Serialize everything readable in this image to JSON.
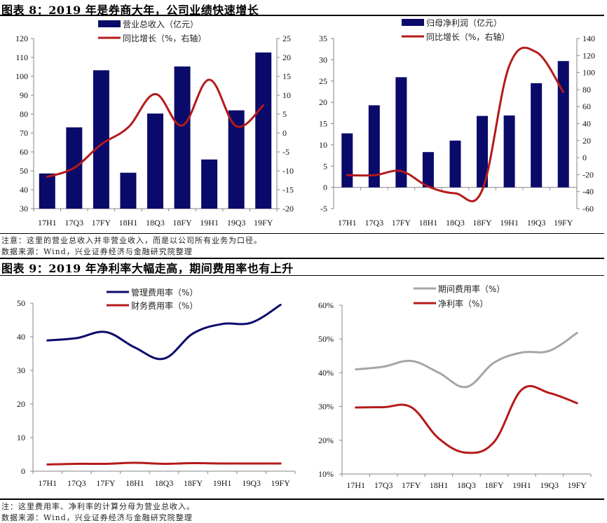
{
  "figure8": {
    "title": "图表 8：2019 年是券商大年，公司业绩快速增长",
    "note": "注意：这里的营业总收入并非营业收入，而是以公司所有业务为口径。",
    "source": "数据来源：Wind，兴业证券经济与金融研究院整理"
  },
  "figure9": {
    "title": "图表 9：2019 年净利率大幅走高，期间费用率也有上升",
    "note": "注：这里费用率、净利率的计算分母为营业总收入。",
    "source": "数据来源：Wind，兴业证券经济与金融研究院整理"
  },
  "colors": {
    "navy": "#0a0a6b",
    "red": "#b41a1a",
    "gray": "#a6a6a6",
    "axis": "#868686"
  },
  "chart_data": [
    {
      "id": "revenue",
      "type": "bar",
      "categories": [
        "17H1",
        "17Q3",
        "17FY",
        "18H1",
        "18Q3",
        "18FY",
        "19H1",
        "19Q3",
        "19FY"
      ],
      "series": [
        {
          "name": "营业总收入（亿元）",
          "type": "bar",
          "axis": "left",
          "color": "#0a0a6b",
          "values": [
            48.6,
            73,
            103.2,
            49,
            80.3,
            105.2,
            56,
            82,
            112.6
          ]
        },
        {
          "name": "同比增长（%，右轴）",
          "type": "line",
          "axis": "right",
          "color": "#b41a1a",
          "values": [
            -11.6,
            -9.2,
            -3,
            1.5,
            10.3,
            2,
            14.1,
            1.8,
            7.3
          ]
        }
      ],
      "ylim_left": [
        30,
        120
      ],
      "yticks_left": [
        30,
        40,
        50,
        60,
        70,
        80,
        90,
        100,
        110,
        120
      ],
      "ylim_right": [
        -20,
        25
      ],
      "yticks_right": [
        -20,
        -15,
        -10,
        -5,
        0,
        5,
        10,
        15,
        20,
        25
      ],
      "legend": "top-center",
      "grid": false
    },
    {
      "id": "netprofit",
      "type": "bar",
      "categories": [
        "17H1",
        "17Q3",
        "17FY",
        "18H1",
        "18Q3",
        "18FY",
        "19H1",
        "19Q3",
        "19FY"
      ],
      "series": [
        {
          "name": "归母净利润（亿元）",
          "type": "bar",
          "axis": "left",
          "color": "#0a0a6b",
          "values": [
            12.7,
            19.3,
            25.9,
            8.3,
            11,
            16.8,
            16.9,
            24.5,
            29.7
          ]
        },
        {
          "name": "同比增长（%，右轴）",
          "type": "line",
          "axis": "right",
          "color": "#b41a1a",
          "values": [
            -20.6,
            -20.7,
            -16,
            -34,
            -42,
            -38,
            108,
            124,
            77
          ]
        }
      ],
      "ylim_left": [
        -5,
        35
      ],
      "yticks_left": [
        -5,
        0,
        5,
        10,
        15,
        20,
        25,
        30,
        35
      ],
      "ylim_right": [
        -60,
        140
      ],
      "yticks_right": [
        -60,
        -40,
        -20,
        0,
        20,
        40,
        60,
        80,
        100,
        120,
        140
      ],
      "legend": "top-center",
      "grid": false
    },
    {
      "id": "expense",
      "type": "line",
      "categories": [
        "17H1",
        "17Q3",
        "17FY",
        "18H1",
        "18Q3",
        "18FY",
        "19H1",
        "19Q3",
        "19FY"
      ],
      "series": [
        {
          "name": "管理费用率（%）",
          "color": "#0a0a6b",
          "values": [
            38.9,
            39.6,
            41.4,
            36.8,
            33.5,
            41,
            43.8,
            44.2,
            49.5
          ]
        },
        {
          "name": "财务费用率（%）",
          "color": "#b41a1a",
          "values": [
            2,
            2.2,
            2.2,
            2.5,
            2.2,
            2.4,
            2.3,
            2.3,
            2.3
          ]
        }
      ],
      "ylim": [
        0,
        50
      ],
      "yticks": [
        0,
        10,
        20,
        30,
        40,
        50
      ],
      "ytick_labels": [
        "0",
        "10",
        "20",
        "30",
        "40",
        "50"
      ],
      "legend": "top-center",
      "grid": false
    },
    {
      "id": "margin",
      "type": "line",
      "categories": [
        "17H1",
        "17Q3",
        "17FY",
        "18H1",
        "18Q3",
        "18FY",
        "19H1",
        "19Q3",
        "19FY"
      ],
      "series": [
        {
          "name": "期间费用率（%）",
          "color": "#a6a6a6",
          "values": [
            41,
            41.8,
            43.5,
            40,
            35.8,
            43,
            46,
            46.5,
            51.8
          ]
        },
        {
          "name": "净利率（%）",
          "color": "#b41a1a",
          "values": [
            29.7,
            29.8,
            29.8,
            20.5,
            16.3,
            19.5,
            35,
            34,
            31
          ]
        }
      ],
      "ylim": [
        10,
        60
      ],
      "yticks": [
        10,
        20,
        30,
        40,
        50,
        60
      ],
      "ytick_labels": [
        "10%",
        "20%",
        "30%",
        "40%",
        "50%",
        "60%"
      ],
      "legend": "top-center",
      "grid": false
    }
  ]
}
